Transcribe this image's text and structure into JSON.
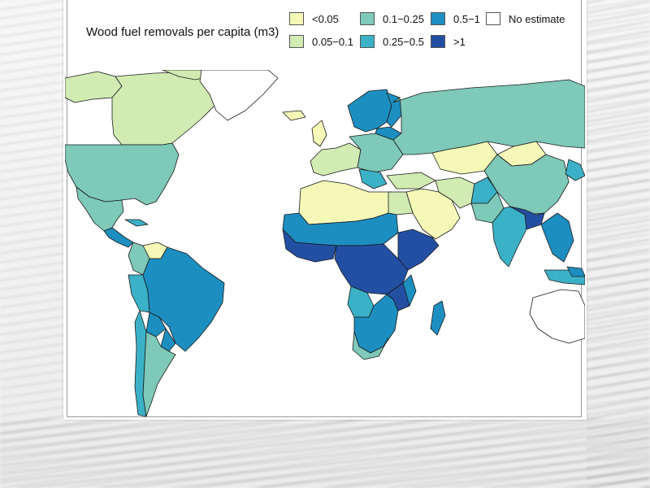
{
  "title": "Wood fuel removals per capita (m3)",
  "legend": [
    {
      "label": "<0.05",
      "color": "#f4f9b7"
    },
    {
      "label": "0.05−0.1",
      "color": "#d1ebb3"
    },
    {
      "label": "0.1−0.25",
      "color": "#7ec9b8"
    },
    {
      "label": "0.25−0.5",
      "color": "#3bb1c7"
    },
    {
      "label": "0.5−1",
      "color": "#1d8ec0"
    },
    {
      "label": ">1",
      "color": "#234fa3"
    },
    {
      "label": "No estimate",
      "color": "#ffffff"
    }
  ],
  "border_color": "#1a1a1a"
}
